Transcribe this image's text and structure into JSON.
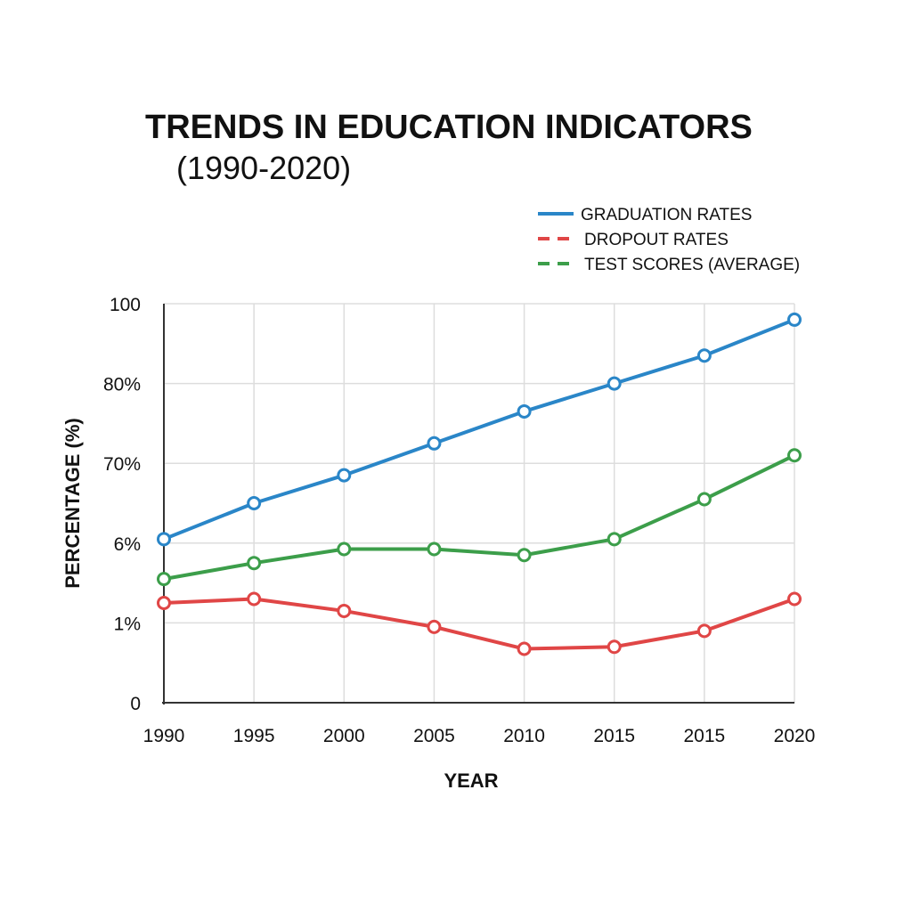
{
  "chart_data": {
    "type": "line",
    "title_line1": "TRENDS IN EDUCATION INDICATORS",
    "title_line2": "(1990-2020)",
    "xlabel": "YEAR",
    "ylabel": "PERCENTAGE (%)",
    "categories": [
      "1990",
      "1995",
      "2000",
      "2005",
      "2010",
      "2015",
      "2015",
      "2020"
    ],
    "y_tick_labels": [
      "0",
      "1%",
      "6%",
      "70%",
      "80%",
      "100"
    ],
    "ylim": [
      0,
      100
    ],
    "grid": true,
    "legend_position": "top-right",
    "series": [
      {
        "name": "GRADUATION RATES",
        "color": "#2a86c8",
        "style": "solid",
        "values": [
          41,
          50,
          57,
          65,
          73,
          80,
          87,
          96
        ]
      },
      {
        "name": "DROPOUT RATES",
        "color": "#e04646",
        "style": "dashed",
        "values": [
          25,
          26,
          23,
          19,
          13.5,
          14,
          18,
          26
        ]
      },
      {
        "name": "TEST SCORES (AVERAGE)",
        "color": "#3c9e4a",
        "style": "dashed",
        "values": [
          31,
          35,
          38.5,
          38.5,
          37,
          41,
          51,
          62
        ]
      }
    ]
  }
}
